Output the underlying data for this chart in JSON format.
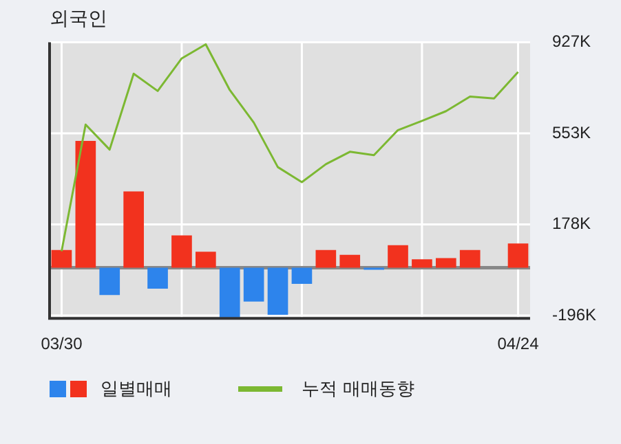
{
  "chart_data": {
    "type": "bar",
    "title": "외국인",
    "categories": [
      "03/30",
      null,
      null,
      null,
      null,
      null,
      null,
      null,
      null,
      null,
      null,
      null,
      null,
      null,
      null,
      null,
      null,
      null,
      null,
      "04/24"
    ],
    "series": [
      {
        "name": "일별매매",
        "colors": [
          "#f2321e",
          "#f2321e",
          "#2d84ec",
          "#f2321e",
          "#2d84ec",
          "#f2321e",
          "#f2321e",
          "#2d84ec",
          "#2d84ec",
          "#2d84ec",
          "#2d84ec",
          "#f2321e",
          "#f2321e",
          "#2d84ec",
          "#f2321e",
          "#f2321e",
          "#f2321e",
          "#f2321e",
          null,
          "#f2321e"
        ],
        "values": [
          73,
          522,
          -112,
          314,
          -86,
          133,
          66,
          -205,
          -139,
          -193,
          -66,
          73,
          53,
          -8,
          93,
          35,
          40,
          73,
          null,
          100
        ]
      },
      {
        "name": "누적 매매동향",
        "type": "line",
        "color": "#7cb832",
        "values": [
          68,
          589,
          486,
          798,
          727,
          861,
          919,
          731,
          597,
          414,
          352,
          426,
          477,
          463,
          566,
          604,
          644,
          704,
          696,
          805
        ]
      }
    ],
    "ylim": [
      -208,
      927
    ],
    "yticks": [
      {
        "value": -196,
        "label": "-196K"
      },
      {
        "value": 178,
        "label": "178K"
      },
      {
        "value": 553,
        "label": "553K"
      },
      {
        "value": 927,
        "label": "927K"
      }
    ],
    "grid": true,
    "legend": "bottom",
    "marker": "none",
    "line_style": "solid"
  }
}
